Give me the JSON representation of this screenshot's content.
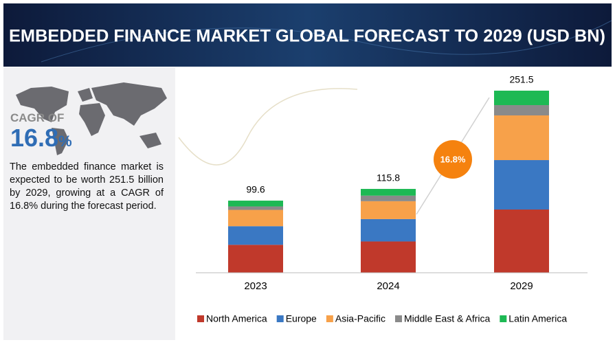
{
  "header": {
    "title": "EMBEDDED FINANCE MARKET GLOBAL FORECAST TO 2029 (USD BN)"
  },
  "sidebar": {
    "cagr_label": "CAGR OF",
    "cagr_value": "16.8",
    "cagr_unit": "%",
    "description": "The embedded finance market is expected to be worth 251.5 billion by 2029, growing at a CAGR of 16.8% during the forecast period."
  },
  "chart_data": {
    "type": "stacked_bar",
    "categories": [
      "2023",
      "2024",
      "2029"
    ],
    "totals": [
      99.6,
      115.8,
      251.5
    ],
    "series": [
      {
        "name": "North America",
        "color": "#c0392b",
        "values": [
          38.6,
          43.2,
          87.3
        ]
      },
      {
        "name": "Europe",
        "color": "#3a78c3",
        "values": [
          25.7,
          30.9,
          68.3
        ]
      },
      {
        "name": "Asia-Pacific",
        "color": "#f7a14a",
        "values": [
          22.5,
          24.7,
          61.7
        ]
      },
      {
        "name": "Middle East & Africa",
        "color": "#8a8a8a",
        "values": [
          4.8,
          7.7,
          14.2
        ]
      },
      {
        "name": "Latin America",
        "color": "#1db954",
        "values": [
          8.0,
          9.3,
          20.0
        ]
      }
    ],
    "ylim": [
      0,
      260
    ],
    "badge": "16.8%"
  }
}
